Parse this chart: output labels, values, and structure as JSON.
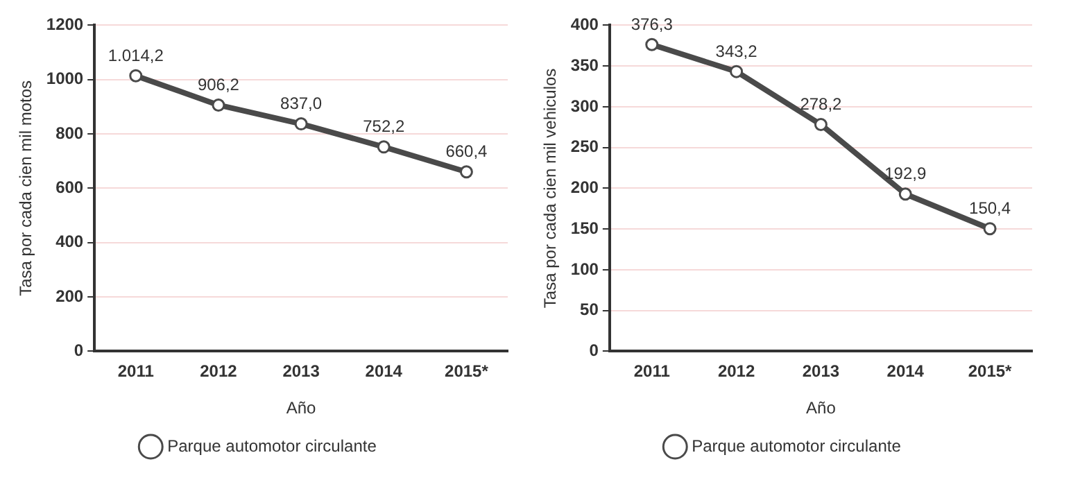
{
  "chart_data": [
    {
      "type": "line",
      "xlabel": "Año",
      "ylabel": "Tasa por cada cien mil motos",
      "categories": [
        "2011",
        "2012",
        "2013",
        "2014",
        "2015*"
      ],
      "series": [
        {
          "name": "Parque automotor circulante",
          "color": "#4a4a4a",
          "values": [
            1014.2,
            906.2,
            837.0,
            752.2,
            660.4
          ],
          "value_labels": [
            "1.014,2",
            "906,2",
            "837,0",
            "752,2",
            "660,4"
          ]
        }
      ],
      "ylim": [
        0,
        1200
      ],
      "yticks": [
        0,
        200,
        400,
        600,
        800,
        1000,
        1200
      ],
      "grid": "y",
      "legend": "bottom",
      "marker": "circle",
      "line_style": "solid"
    },
    {
      "type": "line",
      "xlabel": "Año",
      "ylabel": "Tasa por cada cien mil vehiculos",
      "categories": [
        "2011",
        "2012",
        "2013",
        "2014",
        "2015*"
      ],
      "series": [
        {
          "name": "Parque automotor circulante",
          "color": "#4a4a4a",
          "values": [
            376.3,
            343.2,
            278.2,
            192.9,
            150.4
          ],
          "value_labels": [
            "376,3",
            "343,2",
            "278,2",
            "192,9",
            "150,4"
          ]
        }
      ],
      "ylim": [
        0,
        400
      ],
      "yticks": [
        0,
        50,
        100,
        150,
        200,
        250,
        300,
        350,
        400
      ],
      "grid": "y",
      "legend": "bottom",
      "marker": "circle",
      "line_style": "solid"
    }
  ]
}
